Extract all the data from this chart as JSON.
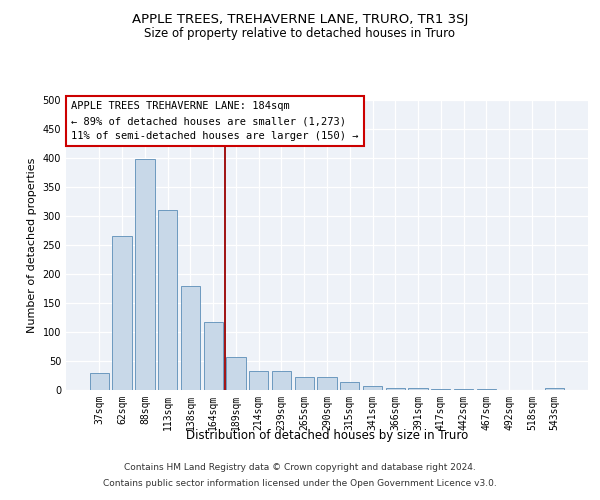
{
  "title": "APPLE TREES, TREHAVERNE LANE, TRURO, TR1 3SJ",
  "subtitle": "Size of property relative to detached houses in Truro",
  "xlabel": "Distribution of detached houses by size in Truro",
  "ylabel": "Number of detached properties",
  "footer_line1": "Contains HM Land Registry data © Crown copyright and database right 2024.",
  "footer_line2": "Contains public sector information licensed under the Open Government Licence v3.0.",
  "bar_color": "#c8d8e8",
  "bar_edge_color": "#5b8db8",
  "vline_color": "#990000",
  "annotation_line1": "APPLE TREES TREHAVERNE LANE: 184sqm",
  "annotation_line2": "← 89% of detached houses are smaller (1,273)",
  "annotation_line3": "11% of semi-detached houses are larger (150) →",
  "annotation_box_color": "#ffffff",
  "annotation_border_color": "#cc0000",
  "categories": [
    "37sqm",
    "62sqm",
    "88sqm",
    "113sqm",
    "138sqm",
    "164sqm",
    "189sqm",
    "214sqm",
    "239sqm",
    "265sqm",
    "290sqm",
    "315sqm",
    "341sqm",
    "366sqm",
    "391sqm",
    "417sqm",
    "442sqm",
    "467sqm",
    "492sqm",
    "518sqm",
    "543sqm"
  ],
  "values": [
    30,
    265,
    398,
    310,
    180,
    118,
    57,
    33,
    33,
    23,
    22,
    13,
    7,
    3,
    3,
    2,
    2,
    1,
    0,
    0,
    4
  ],
  "ylim": [
    0,
    500
  ],
  "yticks": [
    0,
    50,
    100,
    150,
    200,
    250,
    300,
    350,
    400,
    450,
    500
  ],
  "bar_width": 0.85,
  "bg_color": "#eef2f8",
  "grid_color": "#ffffff",
  "title_fontsize": 9.5,
  "subtitle_fontsize": 8.5,
  "ylabel_fontsize": 8,
  "xlabel_fontsize": 8.5,
  "tick_fontsize": 7,
  "annot_fontsize": 7.5,
  "footer_fontsize": 6.5
}
